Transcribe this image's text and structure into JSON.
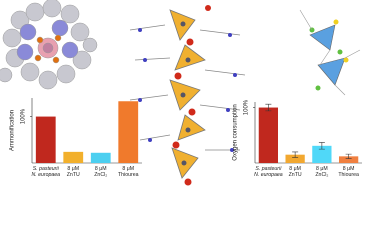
{
  "chart_data": [
    {
      "type": "bar",
      "y_label": "Ammonification",
      "categories": [
        [
          "S. pasteurii",
          "N. europaea"
        ],
        [
          "8 μM",
          "ZnTU"
        ],
        [
          "8 μM",
          "ZnCl₂"
        ],
        [
          "8 μM",
          "Thiourea"
        ]
      ],
      "values": [
        100,
        24,
        22,
        133
      ],
      "colors": [
        "#c0281e",
        "#f2b02c",
        "#4ccff0",
        "#f07a2c"
      ],
      "ylim": [
        0,
        140
      ],
      "yticks": [
        {
          "value": 100,
          "label": "100%"
        }
      ]
    },
    {
      "type": "bar",
      "y_label": "Oxygen consumption",
      "categories": [
        [
          "S. pasteurii",
          "N. europaea"
        ],
        [
          "8 μM",
          "ZnTU"
        ],
        [
          "8 μM",
          "ZnCl₂"
        ],
        [
          "8 μM",
          "Thiourea"
        ]
      ],
      "values": [
        100,
        15,
        31,
        12
      ],
      "errors": [
        6,
        5,
        6,
        4
      ],
      "colors": [
        "#c0281e",
        "#f2a830",
        "#50d8f8",
        "#f08040"
      ],
      "ylim": [
        0,
        110
      ],
      "yticks": [
        {
          "value": 100,
          "label": "100%"
        }
      ]
    }
  ]
}
